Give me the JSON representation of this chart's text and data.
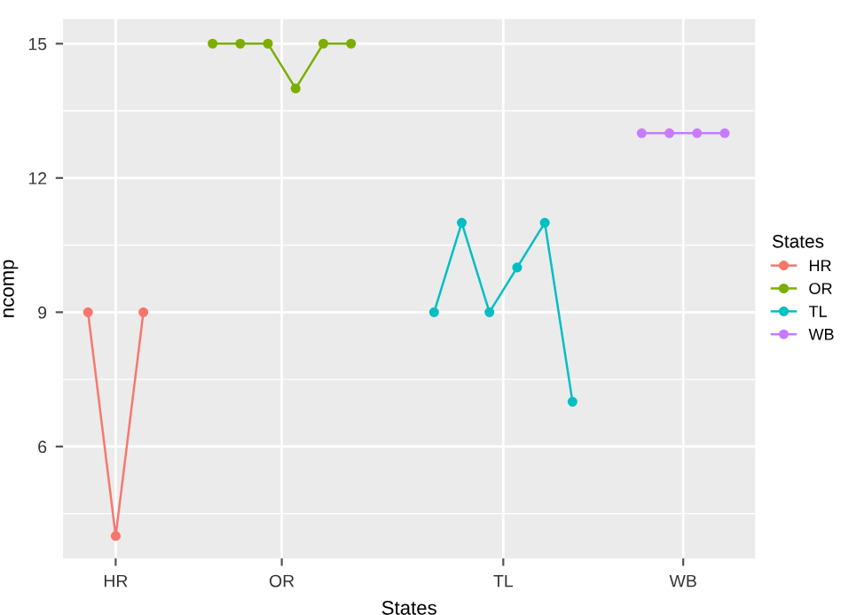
{
  "chart_data": {
    "type": "line",
    "xlabel": "States",
    "ylabel": "ncomp",
    "legend_title": "States",
    "legend": "right",
    "marker": "circle",
    "line_style": "solid",
    "grid": true,
    "categories": [
      null,
      null,
      "HR",
      null,
      null,
      null,
      null,
      null,
      null,
      null,
      null,
      null,
      null,
      null,
      "OR",
      null,
      null,
      null,
      null,
      null,
      null,
      null,
      null,
      null,
      null,
      null,
      null,
      null,
      null,
      null,
      "TL",
      null,
      null,
      null,
      null,
      null,
      null,
      null,
      null,
      null,
      null,
      null,
      null,
      "WB",
      null,
      null,
      null
    ],
    "ylim": [
      3.5,
      15.55
    ],
    "yticks": [
      {
        "value": 4.5,
        "label": null
      },
      6,
      {
        "value": 7.5,
        "label": null
      },
      9,
      {
        "value": 10.5,
        "label": null
      },
      12,
      {
        "value": 13.5,
        "label": null
      },
      15
    ],
    "series": [
      {
        "name": "HR",
        "color": "#f8766d",
        "values": [
          9,
          null,
          4,
          null,
          9,
          null,
          null,
          null,
          null,
          null,
          null,
          null,
          null,
          null,
          null,
          null,
          null,
          null,
          null,
          null,
          null,
          null,
          null,
          null,
          null,
          null,
          null,
          null,
          null,
          null,
          null,
          null,
          null,
          null,
          null,
          null,
          null,
          null,
          null,
          null,
          null,
          null,
          null,
          null,
          null,
          null,
          null
        ]
      },
      {
        "name": "OR",
        "color": "#7cae00",
        "values": [
          null,
          null,
          null,
          null,
          null,
          null,
          null,
          null,
          null,
          15,
          null,
          15,
          null,
          15,
          null,
          14,
          null,
          15,
          null,
          15,
          null,
          null,
          null,
          null,
          null,
          null,
          null,
          null,
          null,
          null,
          null,
          null,
          null,
          null,
          null,
          null,
          null,
          null,
          null,
          null,
          null,
          null,
          null,
          null,
          null,
          null,
          null
        ]
      },
      {
        "name": "TL",
        "color": "#00bfc4",
        "values": [
          null,
          null,
          null,
          null,
          null,
          null,
          null,
          null,
          null,
          null,
          null,
          null,
          null,
          null,
          null,
          null,
          null,
          null,
          null,
          null,
          null,
          null,
          null,
          null,
          null,
          9,
          null,
          11,
          null,
          9,
          null,
          10,
          null,
          11,
          null,
          7,
          null,
          null,
          null,
          null,
          null,
          null,
          null,
          null,
          null,
          null,
          null
        ]
      },
      {
        "name": "WB",
        "color": "#c77cff",
        "values": [
          null,
          null,
          null,
          null,
          null,
          null,
          null,
          null,
          null,
          null,
          null,
          null,
          null,
          null,
          null,
          null,
          null,
          null,
          null,
          null,
          null,
          null,
          null,
          null,
          null,
          null,
          null,
          null,
          null,
          null,
          null,
          null,
          null,
          null,
          null,
          null,
          null,
          null,
          null,
          null,
          13,
          null,
          13,
          null,
          13,
          null,
          13
        ]
      }
    ]
  }
}
